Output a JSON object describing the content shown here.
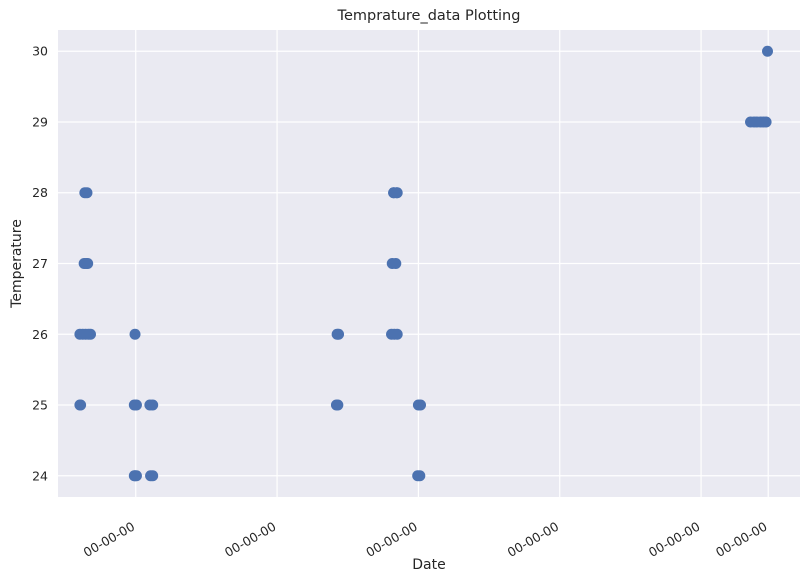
{
  "chart_data": {
    "type": "scatter",
    "title": "Temprature_data Plotting",
    "xlabel": "Date",
    "ylabel": "Temperature",
    "ylim": [
      23.7,
      30.3
    ],
    "y_ticks": [
      24,
      25,
      26,
      27,
      28,
      29,
      30
    ],
    "x_ticks": [
      {
        "value": 2.0,
        "label": "00-00-00"
      },
      {
        "value": 4.0,
        "label": "00-00-00"
      },
      {
        "value": 6.0,
        "label": "00-00-00"
      },
      {
        "value": 8.0,
        "label": "00-00-00"
      },
      {
        "value": 10.0,
        "label": "00-00-00"
      },
      {
        "value": 10.95,
        "label": "00-00-00"
      }
    ],
    "xlim": [
      0.9,
      11.4
    ],
    "grid": true,
    "marker_color": "#4c72b0",
    "background_color": "#eaeaf2",
    "series": [
      {
        "x": [
          1.21,
          1.25,
          1.29,
          1.33,
          1.36,
          1.21,
          1.22,
          1.27,
          1.3,
          1.32,
          1.28,
          1.31,
          1.99,
          1.98,
          2.01,
          1.99,
          2.2,
          2.24,
          1.98,
          2.01,
          2.21,
          2.24,
          4.85,
          4.87,
          4.84,
          4.86,
          5.62,
          5.66,
          5.7,
          5.63,
          5.68,
          5.65,
          5.7,
          5.65,
          5.69,
          6.0,
          6.03,
          5.99,
          6.02,
          10.7,
          10.75,
          10.79,
          10.84,
          10.88,
          10.92,
          10.94
        ],
        "y": [
          26,
          26,
          26,
          26,
          26,
          25,
          25,
          27,
          27,
          27,
          28,
          28,
          26,
          25,
          25,
          24,
          25,
          25,
          24,
          24,
          24,
          24,
          26,
          26,
          25,
          25,
          26,
          26,
          26,
          27,
          27,
          28,
          28,
          28,
          28,
          25,
          25,
          24,
          24,
          29,
          29,
          29,
          29,
          29,
          29,
          30
        ]
      }
    ]
  }
}
